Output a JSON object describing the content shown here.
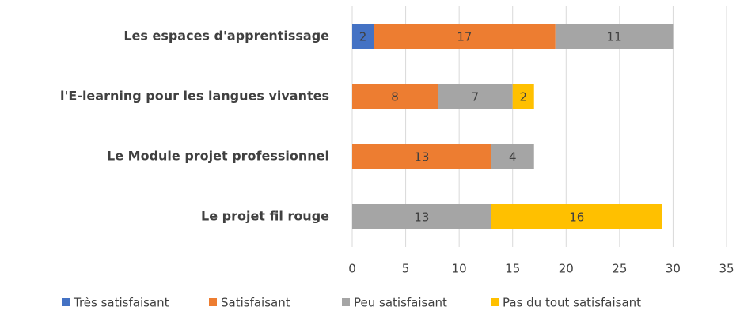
{
  "chart_data": {
    "type": "bar",
    "orientation": "horizontal",
    "stacked": true,
    "categories": [
      "Les espaces d'apprentissage",
      "l'E-learning pour les langues vivantes",
      "Le Module projet professionnel",
      "Le projet fil rouge"
    ],
    "series": [
      {
        "name": "Très satisfaisant",
        "color": "#4472c4",
        "values": [
          2,
          null,
          null,
          null
        ]
      },
      {
        "name": "Satisfaisant",
        "color": "#ed7d31",
        "values": [
          17,
          8,
          13,
          null
        ]
      },
      {
        "name": "Peu satisfaisant",
        "color": "#a5a5a5",
        "values": [
          11,
          7,
          4,
          13
        ]
      },
      {
        "name": "Pas du tout satisfaisant",
        "color": "#ffc000",
        "values": [
          null,
          2,
          null,
          16
        ]
      }
    ],
    "xlim": [
      0,
      35
    ],
    "xticks": [
      0,
      5,
      10,
      15,
      20,
      25,
      30,
      35
    ],
    "grid": true,
    "legend": "bottom"
  }
}
